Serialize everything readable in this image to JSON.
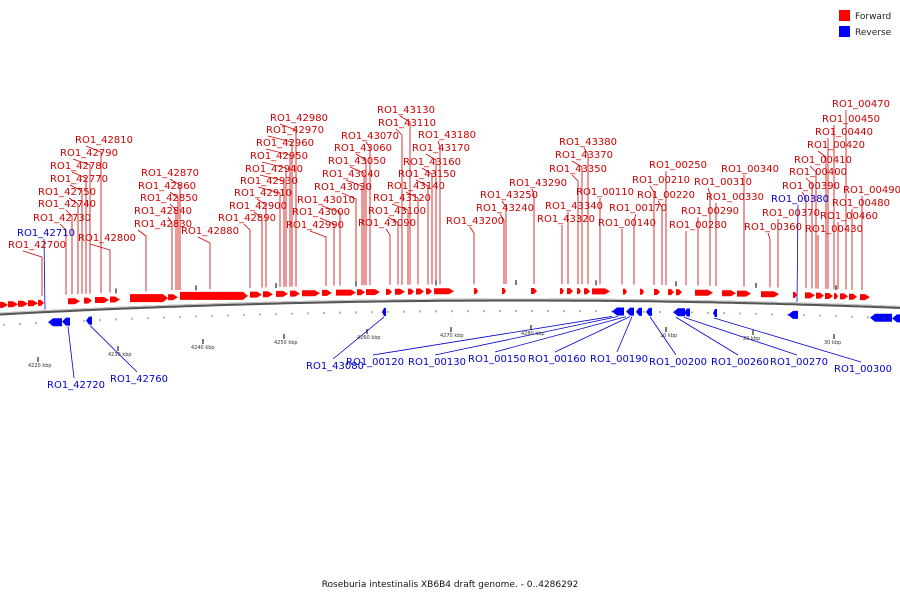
{
  "caption": "Roseburia intestinalis XB6B4 draft genome. - 0..4286292",
  "legend": {
    "forward": {
      "label": "Forward",
      "color": "#ff0000"
    },
    "reverse": {
      "label": "Reverse",
      "color": "#0000ff"
    }
  },
  "kbp_labels": [
    "4220 kbp",
    "4230 kbp",
    "4240 kbp",
    "4250 kbp",
    "4260 kbp",
    "4270 kbp",
    "4280 kbp",
    "10 kbp",
    "20 kbp",
    "30 kbp"
  ],
  "forward_labels": [
    "RO1_42700",
    "RO1_42730",
    "RO1_42740",
    "RO1_42750",
    "RO1_42770",
    "RO1_42780",
    "RO1_42790",
    "RO1_42810",
    "RO1_42800",
    "RO1_42830",
    "RO1_42840",
    "RO1_42850",
    "RO1_42860",
    "RO1_42870",
    "RO1_42880",
    "RO1_42890",
    "RO1_42900",
    "RO1_42910",
    "RO1_42930",
    "RO1_42940",
    "RO1_42950",
    "RO1_42960",
    "RO1_42970",
    "RO1_42980",
    "RO1_42990",
    "RO1_43000",
    "RO1_43010",
    "RO1_43030",
    "RO1_43040",
    "RO1_43050",
    "RO1_43060",
    "RO1_43070",
    "RO1_43090",
    "RO1_43100",
    "RO1_43110",
    "RO1_43120",
    "RO1_43130",
    "RO1_43140",
    "RO1_43150",
    "RO1_43160",
    "RO1_43170",
    "RO1_43180",
    "RO1_43200",
    "RO1_43240",
    "RO1_43250",
    "RO1_43290",
    "RO1_43320",
    "RO1_43340",
    "RO1_43350",
    "RO1_43370",
    "RO1_43380",
    "RO1_00110",
    "RO1_00140",
    "RO1_00170",
    "RO1_00210",
    "RO1_00220",
    "RO1_00250",
    "RO1_00280",
    "RO1_00290",
    "RO1_00310",
    "RO1_00330",
    "RO1_00340",
    "RO1_00360",
    "RO1_00370",
    "RO1_00390",
    "RO1_00400",
    "RO1_00410",
    "RO1_00420",
    "RO1_00430",
    "RO1_00440",
    "RO1_00450",
    "RO1_00460",
    "RO1_00470",
    "RO1_00480",
    "RO1_00490"
  ],
  "reverse_labels": [
    "RO1_42710",
    "RO1_00380",
    "RO1_42720",
    "RO1_42760",
    "RO1_43080",
    "RO1_00120",
    "RO1_00130",
    "RO1_00150",
    "RO1_00160",
    "RO1_00190",
    "RO1_00200",
    "RO1_00260",
    "RO1_00270",
    "RO1_00300"
  ]
}
